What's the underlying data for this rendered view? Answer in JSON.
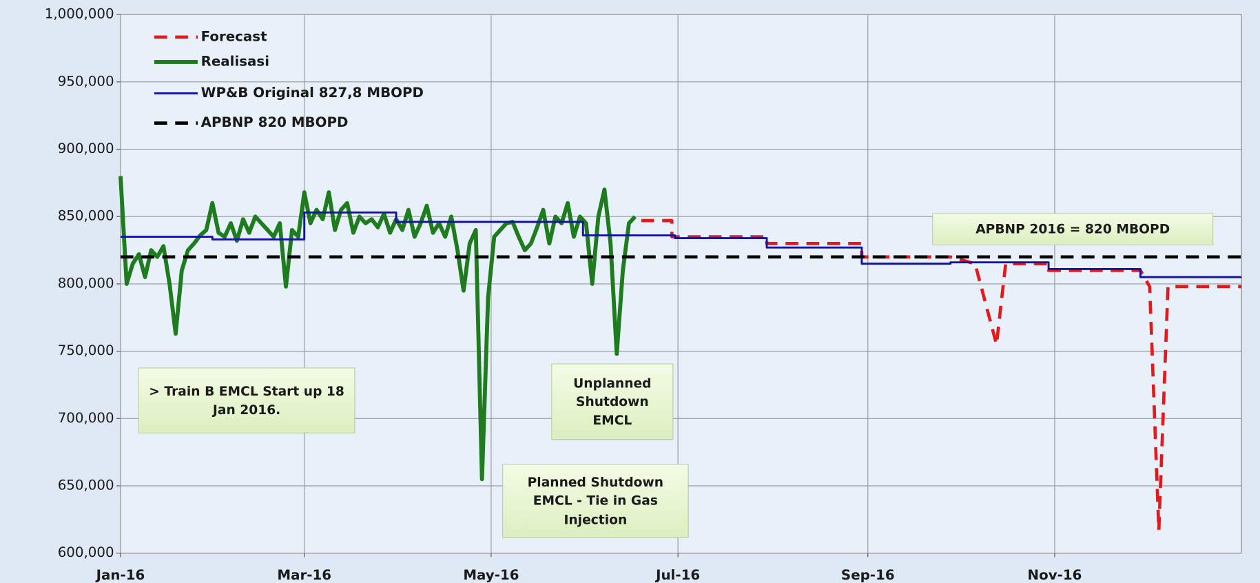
{
  "chart_data": {
    "type": "line",
    "xlim": [
      0,
      366
    ],
    "xticks": [
      {
        "value": 0,
        "label": "Jan-16"
      },
      {
        "value": 60,
        "label": "Mar-16"
      },
      {
        "value": 121,
        "label": "May-16"
      },
      {
        "value": 182,
        "label": "Jul-16"
      },
      {
        "value": 244,
        "label": "Sep-16"
      },
      {
        "value": 305,
        "label": "Nov-16"
      }
    ],
    "ylim": [
      600000,
      1000000
    ],
    "yticks": [
      {
        "value": 600000,
        "label": "600,000"
      },
      {
        "value": 650000,
        "label": "650,000"
      },
      {
        "value": 700000,
        "label": "700,000"
      },
      {
        "value": 750000,
        "label": "750,000"
      },
      {
        "value": 800000,
        "label": "800,000"
      },
      {
        "value": 850000,
        "label": "850,000"
      },
      {
        "value": 900000,
        "label": "900,000"
      },
      {
        "value": 950000,
        "label": "950,000"
      },
      {
        "value": 1000000,
        "label": "1,000,000"
      }
    ],
    "grid": true,
    "legend": "upper left",
    "series": [
      {
        "name": "Forecast",
        "color": "#e31a1c",
        "style": "dashed",
        "x": [
          170,
          180,
          180,
          211,
          211,
          242,
          242,
          271,
          279,
          286,
          289,
          303,
          303,
          333,
          336,
          339,
          342,
          366
        ],
        "values": [
          847000,
          847000,
          835000,
          835000,
          830000,
          830000,
          820000,
          820000,
          815000,
          755000,
          815000,
          815000,
          810000,
          810000,
          798000,
          617000,
          798000,
          798000
        ]
      },
      {
        "name": "Realisasi",
        "color": "#1e7b1e",
        "style": "solid",
        "x": [
          0,
          2,
          4,
          6,
          8,
          10,
          12,
          14,
          16,
          18,
          20,
          22,
          24,
          26,
          28,
          30,
          32,
          34,
          36,
          38,
          40,
          42,
          44,
          46,
          48,
          50,
          52,
          54,
          56,
          58,
          60,
          62,
          64,
          66,
          68,
          70,
          72,
          74,
          76,
          78,
          80,
          82,
          84,
          86,
          88,
          90,
          92,
          94,
          96,
          98,
          100,
          102,
          104,
          106,
          108,
          110,
          112,
          114,
          116,
          118,
          120,
          122,
          124,
          126,
          128,
          130,
          132,
          134,
          136,
          138,
          140,
          142,
          144,
          146,
          148,
          150,
          152,
          154,
          156,
          158,
          160,
          162,
          164,
          166,
          168
        ],
        "values": [
          880000,
          800000,
          815000,
          822000,
          805000,
          825000,
          820000,
          828000,
          800000,
          763000,
          810000,
          825000,
          830000,
          836000,
          840000,
          860000,
          838000,
          835000,
          845000,
          832000,
          848000,
          838000,
          850000,
          845000,
          840000,
          835000,
          845000,
          798000,
          840000,
          835000,
          868000,
          845000,
          855000,
          848000,
          868000,
          840000,
          855000,
          860000,
          838000,
          850000,
          845000,
          848000,
          842000,
          852000,
          838000,
          848000,
          840000,
          855000,
          835000,
          845000,
          858000,
          838000,
          845000,
          835000,
          850000,
          825000,
          795000,
          830000,
          840000,
          655000,
          790000,
          835000,
          840000,
          845000,
          846000,
          835000,
          825000,
          830000,
          842000,
          855000,
          830000,
          850000,
          845000,
          860000,
          835000,
          850000,
          845000,
          800000,
          850000,
          870000,
          830000,
          748000,
          810000,
          845000,
          850000
        ]
      },
      {
        "name": "WP&B Original 827,8 MBOPD",
        "color": "#1414a0",
        "style": "solid",
        "x": [
          0,
          30,
          30,
          60,
          60,
          90,
          90,
          151,
          151,
          181,
          181,
          211,
          211,
          242,
          242,
          271,
          271,
          303,
          303,
          333,
          333,
          366
        ],
        "values": [
          835000,
          835000,
          833000,
          833000,
          853000,
          853000,
          846000,
          846000,
          836000,
          836000,
          834000,
          834000,
          827000,
          827000,
          815000,
          815000,
          816000,
          816000,
          811000,
          811000,
          805000,
          805000
        ]
      },
      {
        "name": "APBNP 820 MBOPD",
        "color": "#000000",
        "style": "dashed",
        "x": [
          0,
          366
        ],
        "values": [
          820000,
          820000
        ]
      }
    ],
    "annotations": [
      "APBNP 2016 = 820  MBOPD",
      "> Train B EMCL Start up 18 Jan 2016.",
      "Unplanned Shutdown EMCL",
      "Planned Shutdown EMCL - Tie in Gas Injection"
    ]
  }
}
